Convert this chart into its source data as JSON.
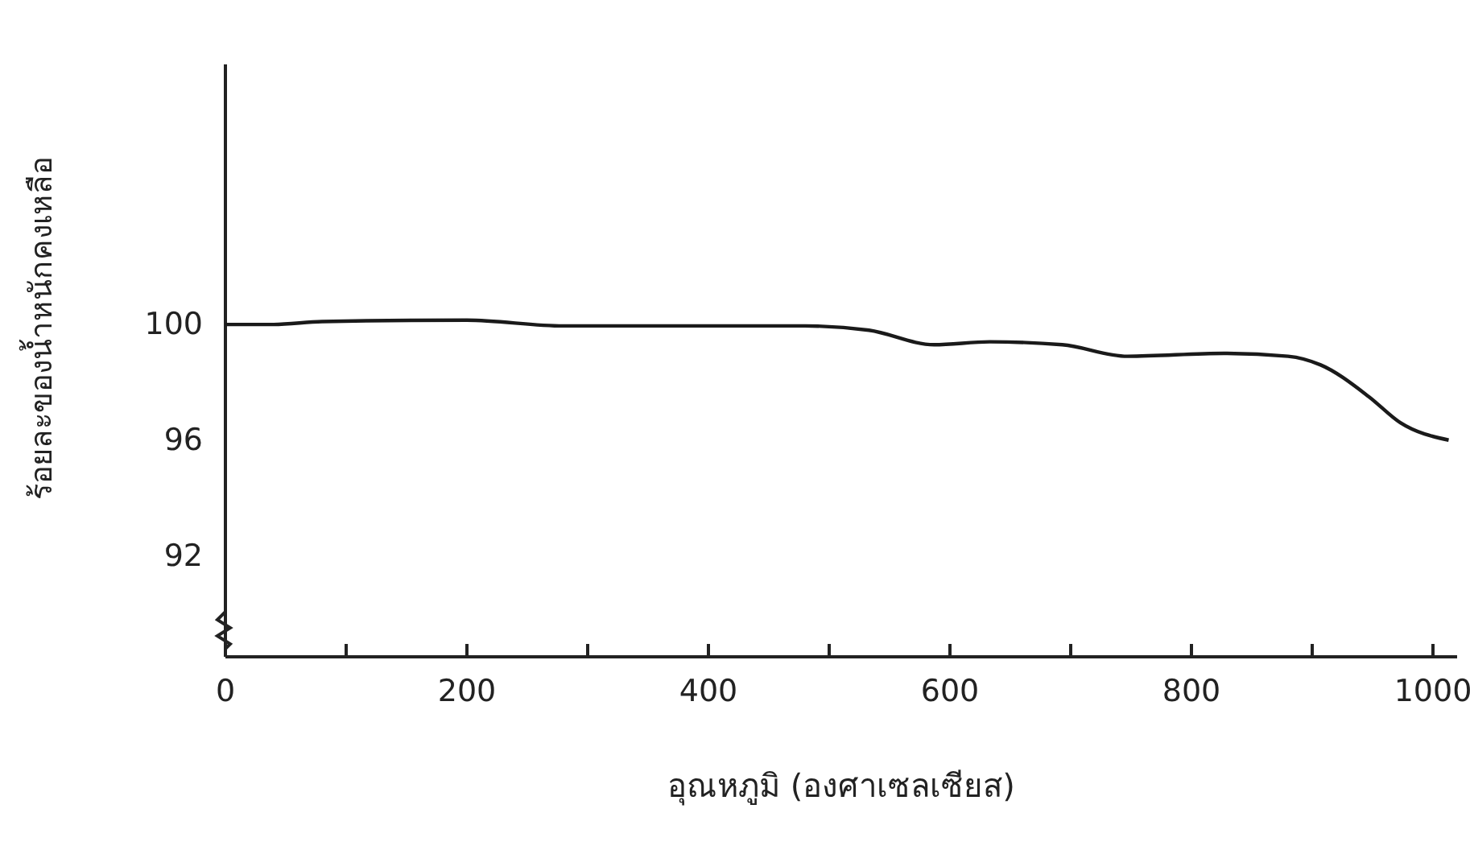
{
  "chart_data": {
    "type": "line",
    "xlabel": "อุณหภูมิ (องศาเซลเซียส)",
    "ylabel": "ร้อยละของน้ำหนักคงเหลือ",
    "xlim": [
      0,
      1020
    ],
    "ylim": [
      88.5,
      109
    ],
    "xticks": [
      0,
      {
        "value": 100,
        "label": null
      },
      200,
      {
        "value": 300,
        "label": null
      },
      400,
      {
        "value": 500,
        "label": null
      },
      600,
      {
        "value": 700,
        "label": null
      },
      800,
      {
        "value": 900,
        "label": null
      },
      1000
    ],
    "yticks": [
      92,
      96,
      100
    ],
    "grid": false,
    "marker": "none",
    "line_style": "solid",
    "series": [
      {
        "color": "#1a1a1a",
        "x": [
          0,
          40,
          80,
          200,
          280,
          400,
          480,
          533,
          587,
          633,
          693,
          747,
          827,
          880,
          907,
          947,
          973,
          1013
        ],
        "values": [
          100,
          100,
          100.1,
          100.15,
          99.95,
          99.95,
          99.95,
          99.8,
          99.3,
          99.4,
          99.3,
          98.9,
          99.0,
          98.9,
          98.6,
          97.5,
          96.6,
          96.0
        ]
      }
    ]
  }
}
